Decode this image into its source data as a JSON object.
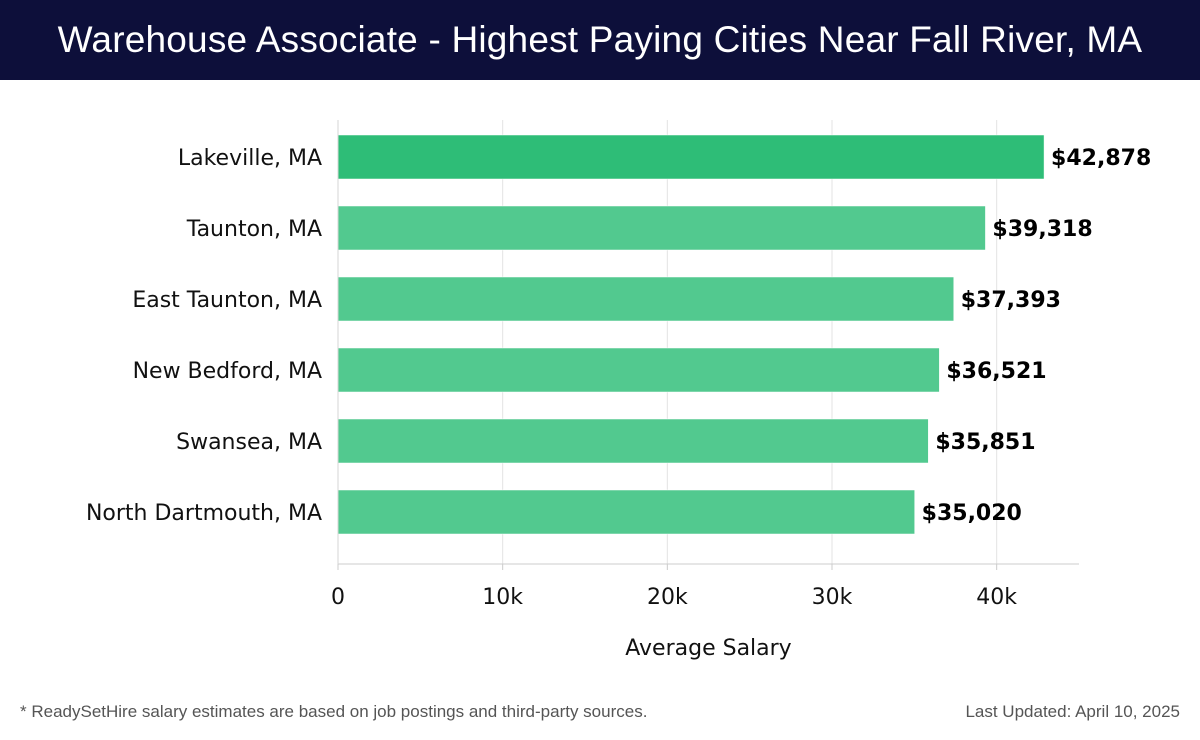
{
  "header": {
    "title": "Warehouse Associate - Highest Paying Cities Near Fall River, MA"
  },
  "chart_data": {
    "type": "bar",
    "orientation": "horizontal",
    "title": "Warehouse Associate - Highest Paying Cities Near Fall River, MA",
    "xlabel": "Average Salary",
    "ylabel": "",
    "categories": [
      "Lakeville, MA",
      "Taunton, MA",
      "East Taunton, MA",
      "New Bedford, MA",
      "Swansea, MA",
      "North Dartmouth, MA"
    ],
    "values": [
      42878,
      39318,
      37393,
      36521,
      35851,
      35020
    ],
    "value_labels": [
      "$42,878",
      "$39,318",
      "$37,393",
      "$36,521",
      "$35,851",
      "$35,020"
    ],
    "xlim": [
      0,
      45000
    ],
    "x_ticks": [
      0,
      10000,
      20000,
      30000,
      40000
    ],
    "x_tick_labels": [
      "0",
      "10k",
      "20k",
      "30k",
      "40k"
    ],
    "grid": true,
    "colors": {
      "top_bar": "#2ebd77",
      "bar": "#52c98f",
      "title_bg": "#0d0f3a"
    }
  },
  "footer": {
    "note": "* ReadySetHire salary estimates are based on job postings and third-party sources.",
    "updated": "Last Updated: April 10, 2025"
  }
}
